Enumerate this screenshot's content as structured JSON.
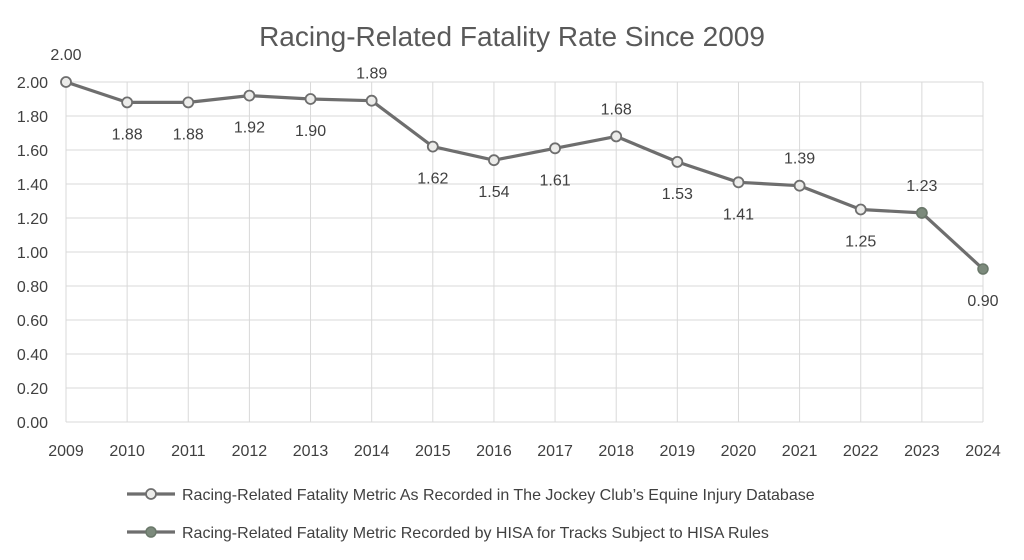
{
  "chart_data": {
    "type": "line",
    "title": "Racing-Related Fatality Rate Since 2009",
    "xlabel": "",
    "ylabel": "",
    "categories": [
      "2009",
      "2010",
      "2011",
      "2012",
      "2013",
      "2014",
      "2015",
      "2016",
      "2017",
      "2018",
      "2019",
      "2020",
      "2021",
      "2022",
      "2023",
      "2024"
    ],
    "ylim": [
      0,
      2
    ],
    "yticks": [
      "0.00",
      "0.20",
      "0.40",
      "0.60",
      "0.80",
      "1.00",
      "1.20",
      "1.40",
      "1.60",
      "1.80",
      "2.00"
    ],
    "grid": true,
    "legend_position": "bottom",
    "series": [
      {
        "name": "Racing-Related Fatality Metric As Recorded in The Jockey Club’s Equine Injury Database",
        "x": [
          "2009",
          "2010",
          "2011",
          "2012",
          "2013",
          "2014",
          "2015",
          "2016",
          "2017",
          "2018",
          "2019",
          "2020",
          "2021",
          "2022",
          "2023"
        ],
        "values": [
          2.0,
          1.88,
          1.88,
          1.92,
          1.9,
          1.89,
          1.62,
          1.54,
          1.61,
          1.68,
          1.53,
          1.41,
          1.39,
          1.25,
          1.23
        ],
        "labels": [
          "2.00",
          "1.88",
          "1.88",
          "1.92",
          "1.90",
          "1.89",
          "1.62",
          "1.54",
          "1.61",
          "1.68",
          "1.53",
          "1.41",
          "1.39",
          "1.25",
          "1.23"
        ],
        "label_pos": [
          "above",
          "below",
          "below",
          "below",
          "below",
          "above",
          "below",
          "below",
          "below",
          "above",
          "below",
          "below",
          "above",
          "below",
          "above"
        ],
        "marker": "hollow",
        "line_color": "#6e6e6e",
        "marker_fill": "#ececea"
      },
      {
        "name": "Racing-Related Fatality Metric Recorded by HISA for Tracks Subject to HISA Rules",
        "x": [
          "2023",
          "2024"
        ],
        "values": [
          1.23,
          0.9
        ],
        "labels": [
          "",
          "0.90"
        ],
        "label_pos": [
          "none",
          "below"
        ],
        "marker": "filled",
        "line_color": "#6e6e6e",
        "marker_fill": "#7c8a7c"
      }
    ]
  }
}
